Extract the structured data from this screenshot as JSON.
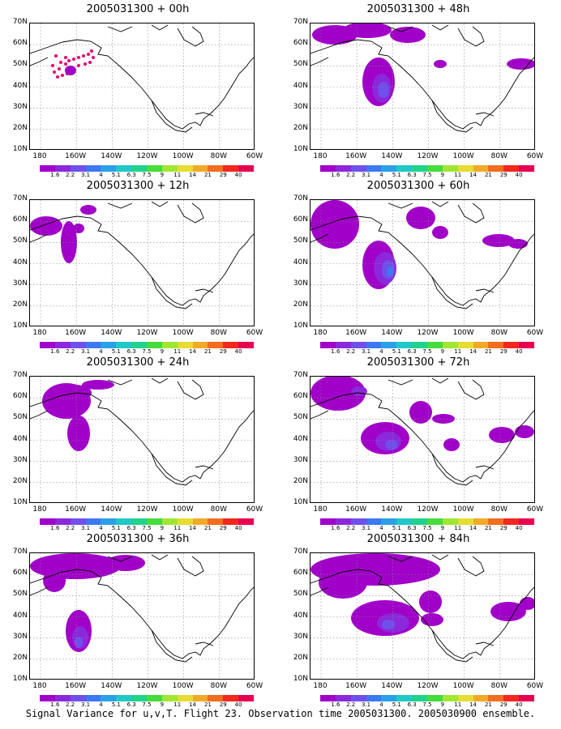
{
  "footer": "Signal Variance for u,v,T. Flight 23. Observation time 2005031300. 2005030900 ensemble.",
  "axes": {
    "y_labels": [
      "70N",
      "60N",
      "50N",
      "40N",
      "30N",
      "20N",
      "10N"
    ],
    "x_labels": [
      "180",
      "160W",
      "140W",
      "120W",
      "100W",
      "80W",
      "60W"
    ]
  },
  "colorbar": {
    "labels": [
      "1.6",
      "2.2",
      "3.1",
      "4",
      "5.1",
      "6.3",
      "7.5",
      "9",
      "11",
      "14",
      "21",
      "29",
      "40"
    ],
    "colors": [
      "#a000c8",
      "#8c28dc",
      "#7050ea",
      "#3c78f0",
      "#2aa0e6",
      "#20c8c8",
      "#20d28c",
      "#46dc3c",
      "#a0e632",
      "#e6dc32",
      "#f0aa28",
      "#f06e1e",
      "#f0281e",
      "#e60050"
    ]
  },
  "panels": [
    {
      "title": "2005031300 + 00h"
    },
    {
      "title": "2005031300 + 48h"
    },
    {
      "title": "2005031300 + 12h"
    },
    {
      "title": "2005031300 + 60h"
    },
    {
      "title": "2005031300 + 24h"
    },
    {
      "title": "2005031300 + 72h"
    },
    {
      "title": "2005031300 + 36h"
    },
    {
      "title": "2005031300 + 84h"
    }
  ]
}
